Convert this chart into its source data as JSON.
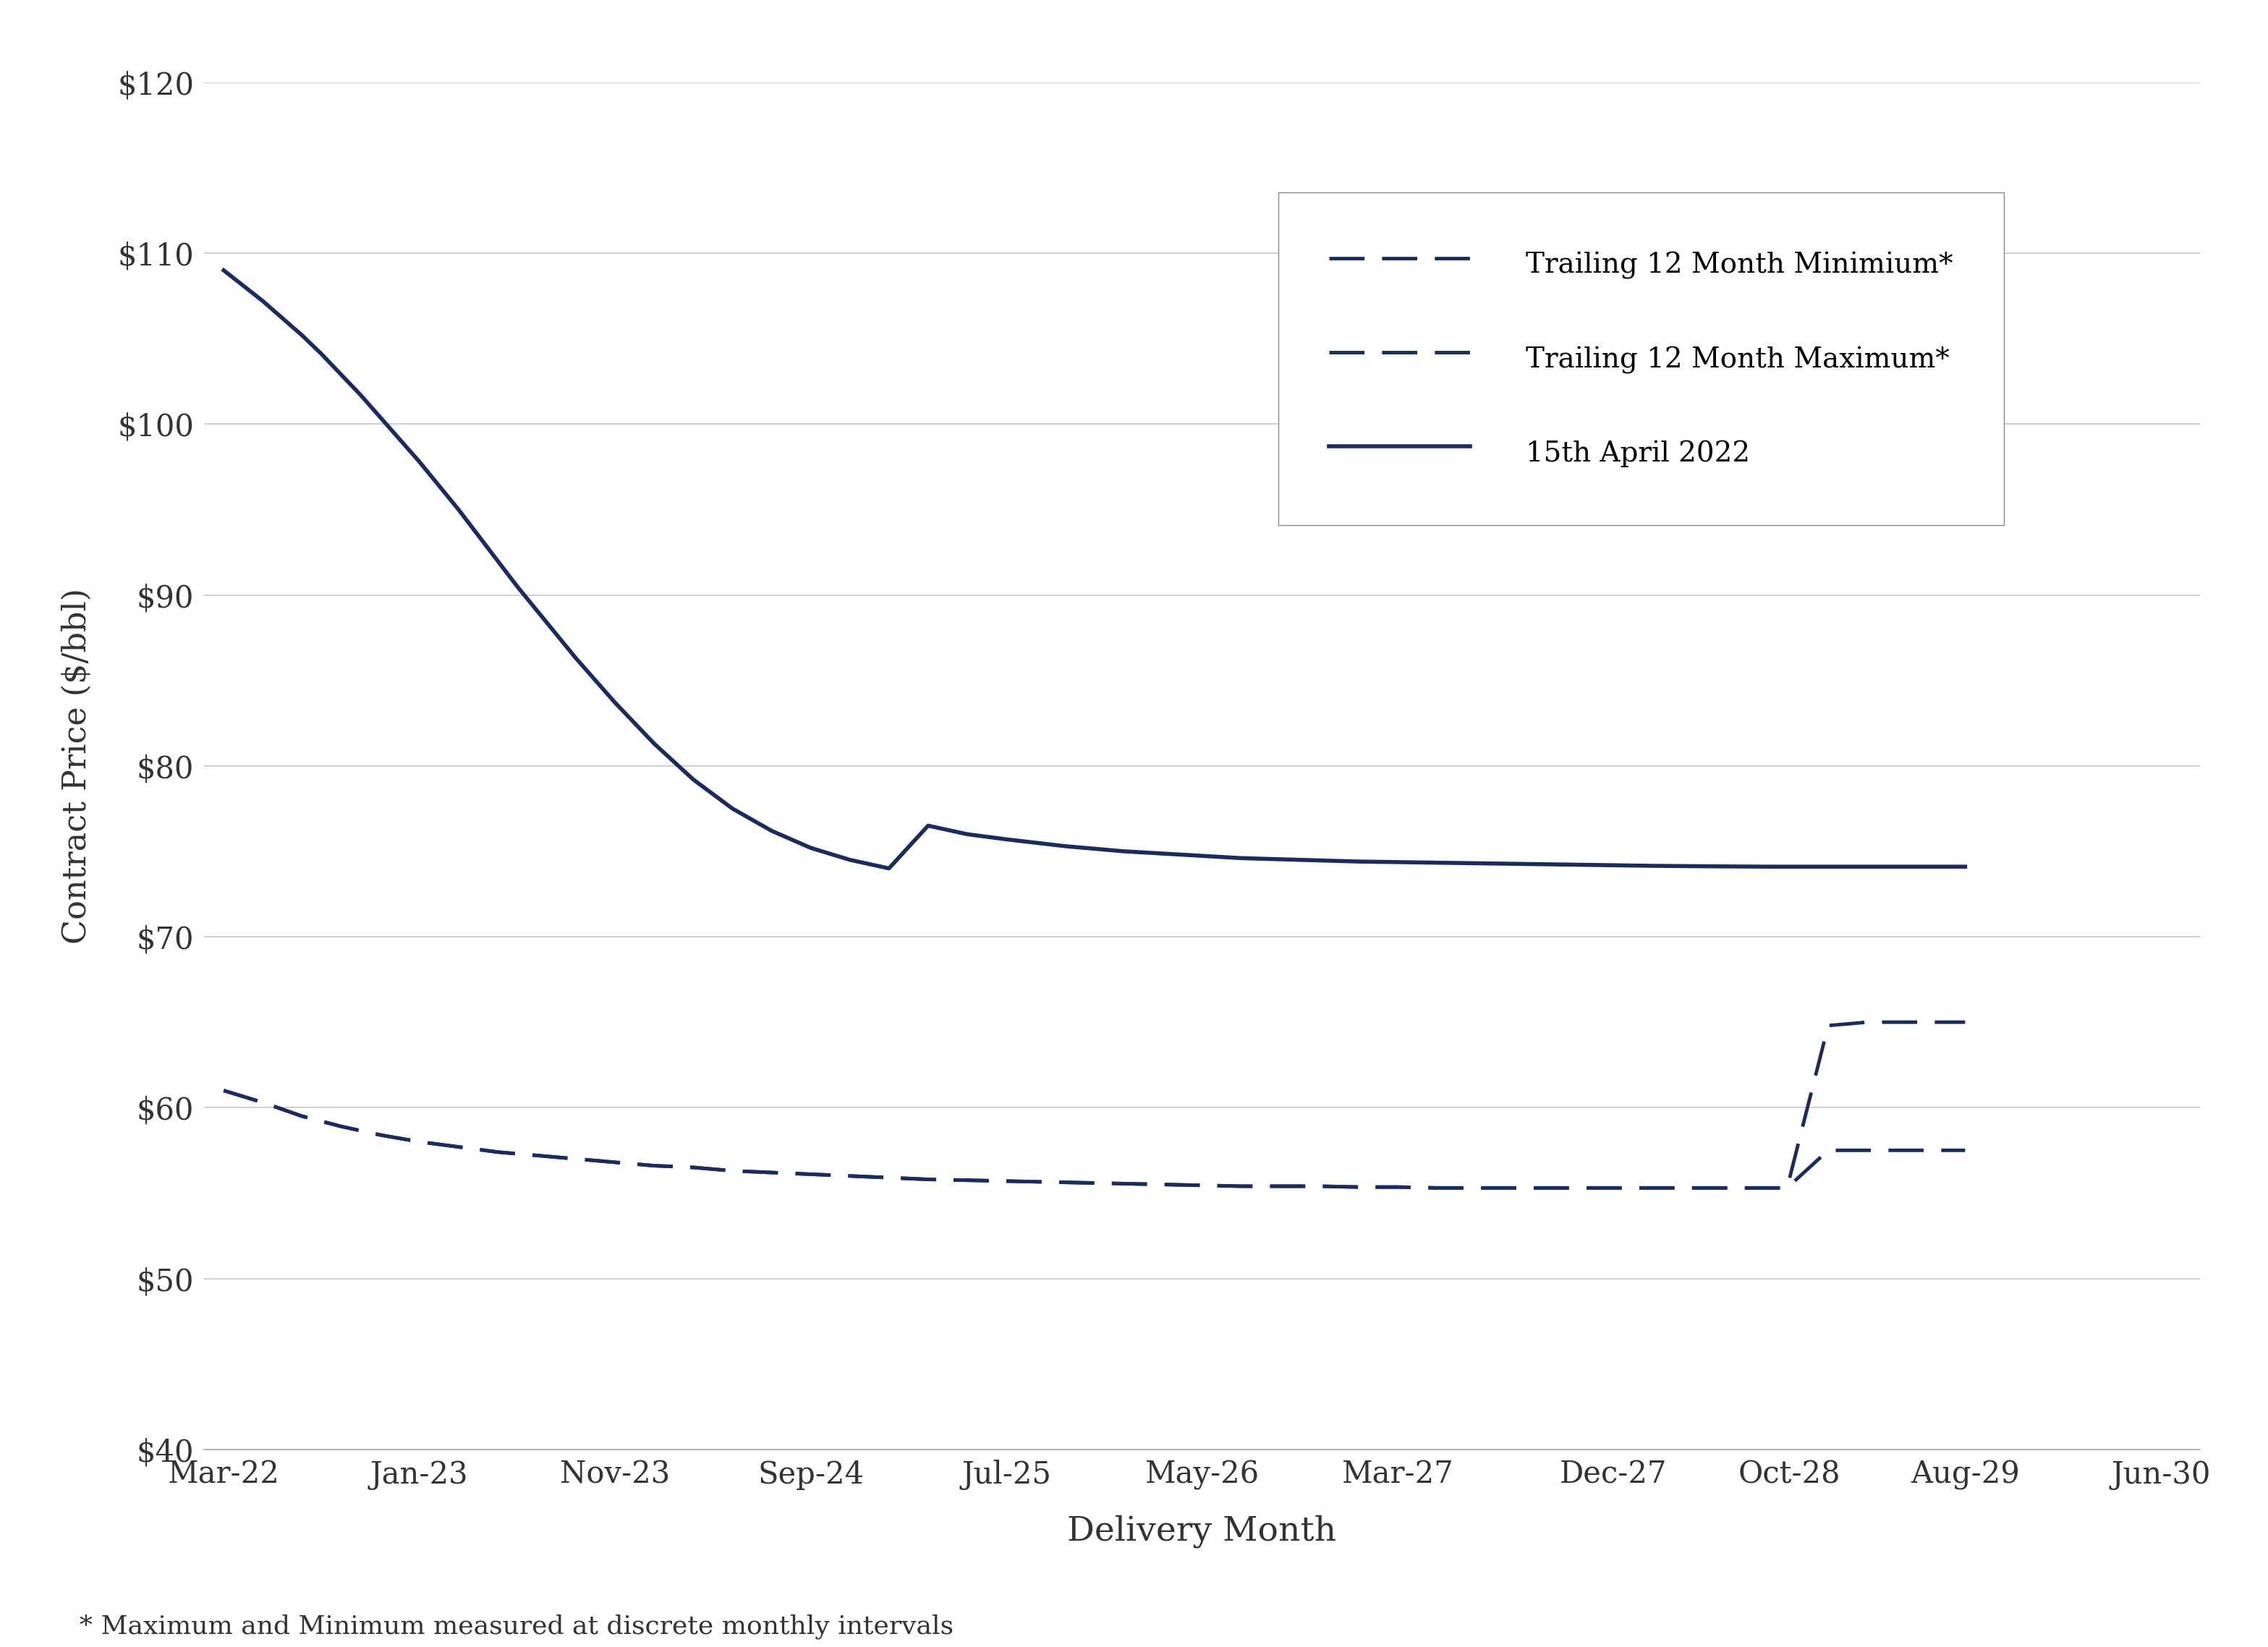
{
  "color_main": "#1c2b5e",
  "background_color": "#ffffff",
  "ylabel": "Contract Price ($/bbl)",
  "xlabel": "Delivery Month",
  "footnote": "* Maximum and Minimum measured at discrete monthly intervals",
  "ylim": [
    40,
    120
  ],
  "yticks": [
    40,
    50,
    60,
    70,
    80,
    90,
    100,
    110,
    120
  ],
  "legend_labels": [
    "Trailing 12 Month Minimium*",
    "Trailing 12 Month Maximum*",
    "15th April 2022"
  ],
  "xtick_labels": [
    "Mar-22",
    "Jan-23",
    "Nov-23",
    "Sep-24",
    "Jul-25",
    "May-26",
    "Mar-27",
    "Dec-27",
    "Oct-28",
    "Aug-29",
    "Jun-30"
  ],
  "xtick_positions": [
    0,
    10,
    20,
    30,
    40,
    50,
    60,
    71,
    80,
    89,
    99
  ],
  "futures_x": [
    0,
    1,
    2,
    3,
    4,
    5,
    6,
    7,
    8,
    9,
    10,
    11,
    12,
    13,
    14,
    15,
    16,
    17,
    18,
    19,
    20,
    22,
    24,
    26,
    28,
    30,
    32,
    34,
    36,
    38,
    40,
    43,
    46,
    49,
    52,
    55,
    58,
    61,
    64,
    67,
    70,
    73,
    76,
    79,
    82,
    85,
    88,
    89
  ],
  "futures_y": [
    109.0,
    108.1,
    107.2,
    106.2,
    105.2,
    104.1,
    102.9,
    101.7,
    100.4,
    99.1,
    97.8,
    96.4,
    95.0,
    93.5,
    92.0,
    90.5,
    89.1,
    87.7,
    86.3,
    85.0,
    83.7,
    81.3,
    79.2,
    77.5,
    76.2,
    75.2,
    74.5,
    74.0,
    76.5,
    76.0,
    75.7,
    75.3,
    75.0,
    74.8,
    74.6,
    74.5,
    74.4,
    74.35,
    74.3,
    74.25,
    74.2,
    74.15,
    74.12,
    74.1,
    74.1,
    74.1,
    74.1,
    74.1
  ],
  "min_x": [
    0,
    2,
    4,
    6,
    8,
    10,
    12,
    14,
    16,
    18,
    20,
    22,
    24,
    26,
    28,
    30,
    32,
    34,
    36,
    38,
    40,
    42,
    44,
    46,
    48,
    50,
    52,
    54,
    56,
    58,
    60,
    62,
    64,
    66,
    68,
    70,
    72,
    74,
    76,
    78,
    79.8,
    79.9,
    82,
    84,
    86,
    88,
    89
  ],
  "min_y": [
    61.0,
    60.3,
    59.5,
    58.9,
    58.4,
    58.0,
    57.7,
    57.4,
    57.2,
    57.0,
    56.8,
    56.6,
    56.5,
    56.3,
    56.2,
    56.1,
    56.0,
    55.9,
    55.8,
    55.75,
    55.7,
    55.65,
    55.6,
    55.55,
    55.5,
    55.45,
    55.4,
    55.4,
    55.4,
    55.35,
    55.35,
    55.3,
    55.3,
    55.3,
    55.3,
    55.3,
    55.3,
    55.3,
    55.3,
    55.3,
    55.3,
    55.3,
    57.5,
    57.5,
    57.5,
    57.5,
    57.5
  ],
  "max_x": [
    0,
    2,
    4,
    6,
    8,
    10,
    12,
    14,
    16,
    18,
    20,
    22,
    24,
    26,
    28,
    30,
    32,
    34,
    36,
    38,
    40,
    42,
    44,
    46,
    48,
    50,
    52,
    54,
    56,
    58,
    60,
    62,
    64,
    66,
    68,
    70,
    72,
    74,
    76,
    78,
    79.8,
    79.9,
    82,
    84,
    86,
    88,
    89
  ],
  "max_y": [
    61.0,
    60.3,
    59.5,
    58.9,
    58.4,
    58.0,
    57.7,
    57.4,
    57.2,
    57.0,
    56.8,
    56.6,
    56.5,
    56.3,
    56.2,
    56.1,
    56.0,
    55.9,
    55.8,
    55.75,
    55.7,
    55.65,
    55.6,
    55.55,
    55.5,
    55.45,
    55.4,
    55.4,
    55.4,
    55.35,
    55.35,
    55.3,
    55.3,
    55.3,
    55.3,
    55.3,
    55.3,
    55.3,
    55.3,
    55.3,
    55.3,
    55.3,
    64.8,
    65.0,
    65.0,
    65.0,
    65.0
  ],
  "grid_color": "#c8c8c8",
  "spine_color": "#aaaaaa",
  "tick_color": "#333333",
  "label_color": "#333333"
}
